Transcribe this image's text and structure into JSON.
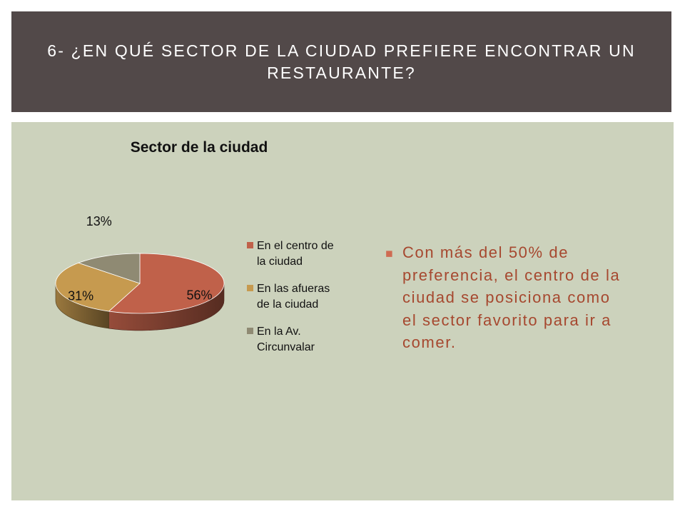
{
  "slide": {
    "title": "6- ¿En qué sector de la ciudad prefiere encontrar un restaurante?",
    "bullet_text": "Con más del 50% de preferencia, el centro de la ciudad se posiciona como el sector favorito para ir a comer.",
    "colors": {
      "header_bg": "#524949",
      "panel_bg": "#ccd2bc",
      "bullet_text": "#a6482f",
      "bullet_marker": "#cf6b52"
    }
  },
  "chart_data": {
    "type": "pie",
    "title": "Sector de la ciudad",
    "style": "3d",
    "legend_position": "right",
    "categories": [
      "En el centro de la ciudad",
      "En las afueras de la ciudad",
      "En la Av. Circunvalar"
    ],
    "values": [
      56,
      31,
      13
    ],
    "labels": [
      "56%",
      "31%",
      "13%"
    ],
    "colors": [
      "#c0614a",
      "#c69a4f",
      "#8f8a73"
    ]
  }
}
